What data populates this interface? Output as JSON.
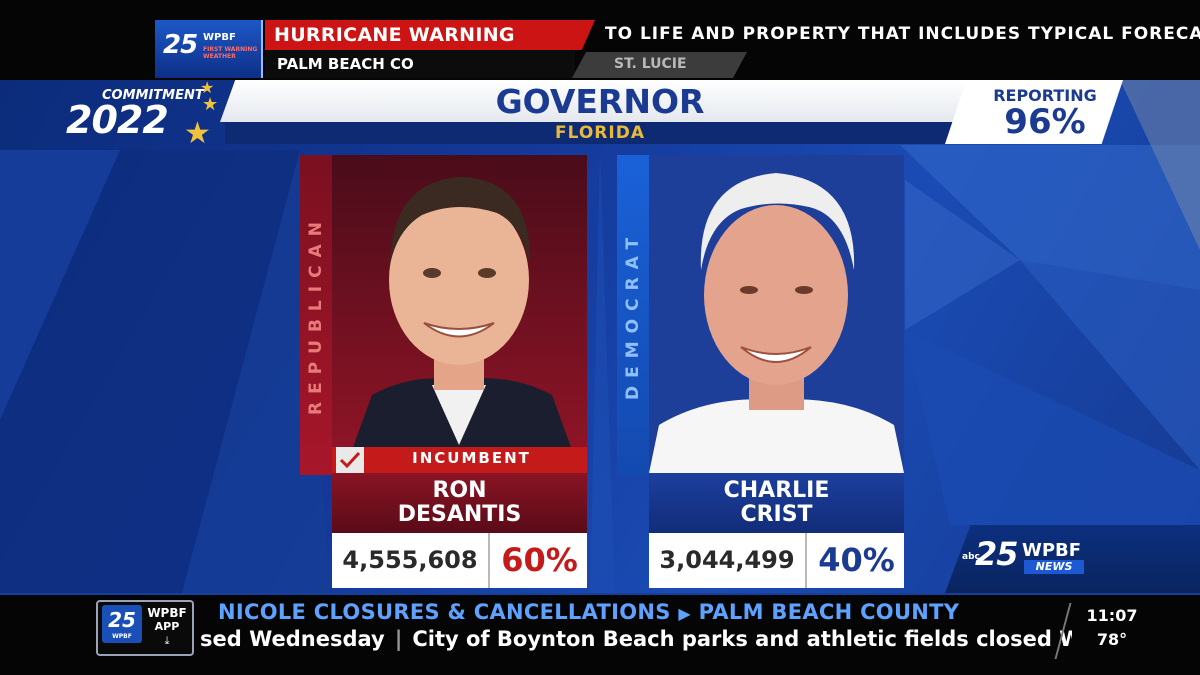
{
  "top_alert": {
    "station_number": "25",
    "station_call": "WPBF",
    "station_tagline": "FIRST WARNING WEATHER",
    "headline": "HURRICANE WARNING",
    "county": "PALM BEACH CO",
    "county_next": "ST. LUCIE",
    "crawl": "TO LIFE AND PROPERTY THAT INCLUDES TYPICAL FORECAS"
  },
  "branding": {
    "commitment_label": "COMMITMENT",
    "commitment_year": "2022"
  },
  "race": {
    "title": "GOVERNOR",
    "state": "FLORIDA",
    "reporting_label": "REPORTING",
    "reporting_value": "96%",
    "reporting_fraction": 0.96
  },
  "candidates": [
    {
      "party": "REPUBLICAN",
      "party_color": "#c41a1a",
      "badge": "INCUMBENT",
      "winner_check": true,
      "first_name": "RON",
      "last_name": "DESANTIS",
      "votes": "4,555,608",
      "percent": "60%",
      "percent_color": "#c41a1a"
    },
    {
      "party": "DEMOCRAT",
      "party_color": "#1a61d8",
      "first_name": "CHARLIE",
      "last_name": "CRIST",
      "votes": "3,044,499",
      "percent": "40%",
      "percent_color": "#1b3b92"
    }
  ],
  "news_bug": {
    "network": "abc",
    "number": "25",
    "call": "WPBF",
    "label": "NEWS"
  },
  "bottom_ticker": {
    "app_number": "25",
    "app_number_sub": "WPBF",
    "app_call": "WPBF",
    "app_label": "APP",
    "headline": "NICOLE CLOSURES & CANCELLATIONS",
    "headline_region": "PALM BEACH COUNTY",
    "crawl_part1": "sed Wednesday",
    "crawl_separator": "|",
    "crawl_part2": "City of Boynton Beach parks and athletic fields closed W",
    "time": "11:07",
    "temperature": "78°"
  },
  "colors": {
    "brand_blue": "#1b3b92",
    "republican_red": "#c41a1a",
    "democrat_blue": "#1a61d8",
    "accent_gold": "#e9b93a",
    "ticker_blue": "#5da2ff"
  }
}
